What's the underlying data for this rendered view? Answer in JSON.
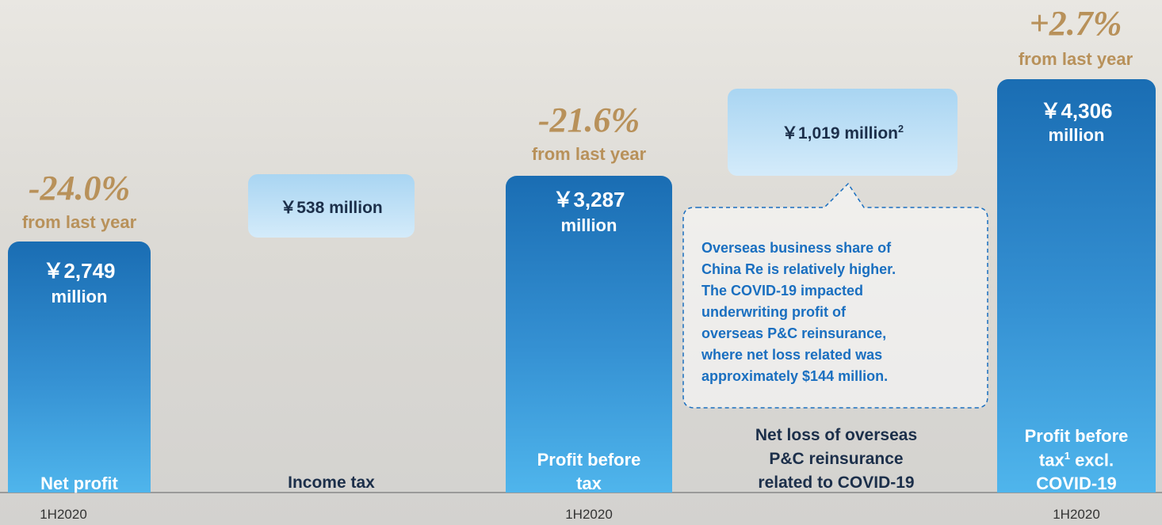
{
  "columns": [
    {
      "change": "-24.0%",
      "change_note": "from last year",
      "value": "￥2,749",
      "unit": "million",
      "label": [
        "Net profit"
      ],
      "period": "1H2020"
    },
    {
      "value": "￥538 million",
      "label": [
        "Income tax"
      ]
    },
    {
      "change": "-21.6%",
      "change_note": "from last year",
      "value": "￥3,287",
      "unit": "million",
      "label": [
        "Profit before",
        "tax"
      ],
      "period": "1H2020"
    },
    {
      "value": "￥1,019 million",
      "value_sup": "2",
      "label": [
        "Net loss of overseas",
        "P&C reinsurance",
        "related to COVID-19"
      ],
      "callout": [
        "Overseas business share of",
        "China Re is relatively higher.",
        "The COVID-19 impacted",
        "underwriting profit of",
        "overseas P&C reinsurance,",
        "where net loss related was",
        "approximately $144 million."
      ]
    },
    {
      "change": "+2.7%",
      "change_note": "from last year",
      "value": "￥4,306",
      "unit": "million",
      "label": [
        "Profit before",
        {
          "text": "tax",
          "sup": "1",
          "rest": " excl."
        },
        "COVID-19"
      ],
      "period": "1H2020"
    }
  ]
}
